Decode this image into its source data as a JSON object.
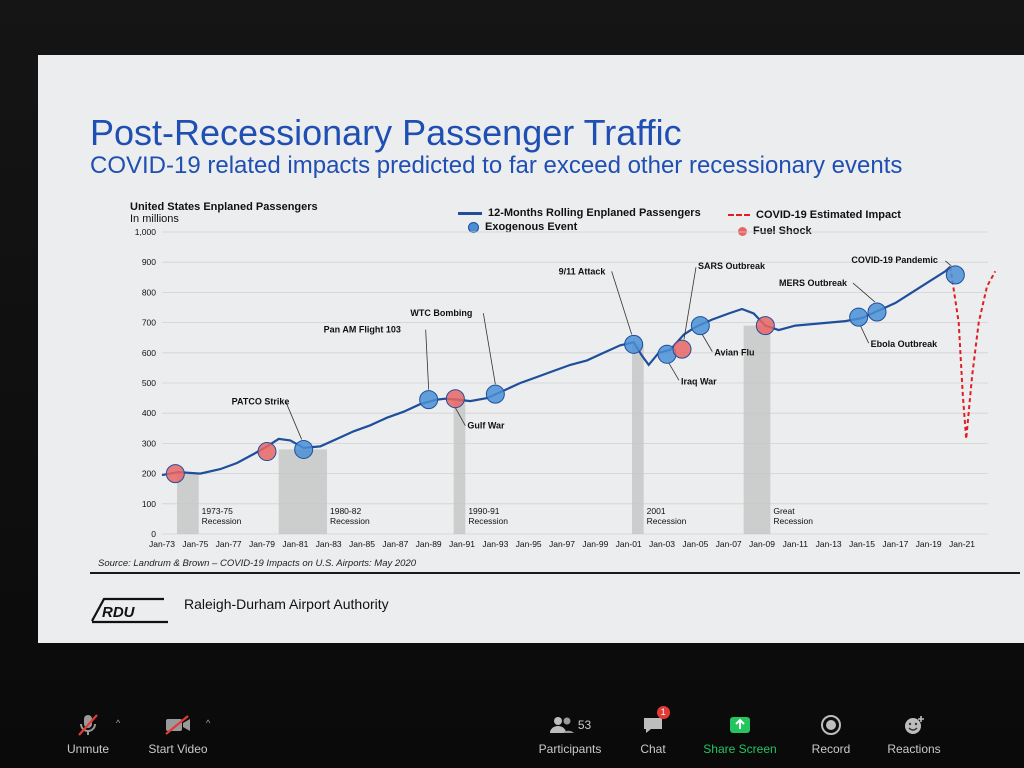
{
  "slide": {
    "title": "Post-Recessionary Passenger Traffic",
    "subtitle": "COVID-19 related impacts predicted to far exceed other recessionary events",
    "y_label": "United States Enplaned Passengers",
    "y_unit": "In millions",
    "legend": {
      "line": "12-Months Rolling Enplaned Passengers",
      "exogenous": "Exogenous Event",
      "covid": "COVID-19 Estimated Impact",
      "fuel": "Fuel Shock"
    },
    "source": "Source: Landrum & Brown – COVID-19 Impacts on U.S. Airports: May 2020",
    "org_name": "Raleigh-Durham Airport Authority",
    "logo_text": "RDU"
  },
  "chart_data": {
    "type": "line",
    "title": "Post-Recessionary Passenger Traffic",
    "ylabel": "United States Enplaned Passengers",
    "ylim": [
      0,
      1000
    ],
    "y_ticks": [
      "1,000",
      "900",
      "800",
      "700",
      "600",
      "500",
      "400",
      "300",
      "200",
      "100",
      "0"
    ],
    "x_ticks": [
      "Jan-73",
      "Jan-75",
      "Jan-77",
      "Jan-79",
      "Jan-81",
      "Jan-83",
      "Jan-85",
      "Jan-87",
      "Jan-89",
      "Jan-91",
      "Jan-93",
      "Jan-95",
      "Jan-97",
      "Jan-99",
      "Jan-01",
      "Jan-03",
      "Jan-05",
      "Jan-07",
      "Jan-09",
      "Jan-11",
      "Jan-13",
      "Jan-15",
      "Jan-17",
      "Jan-19",
      "Jan-21"
    ],
    "grid": true,
    "series": [
      {
        "name": "12-Months Rolling Enplaned Passengers",
        "color": "#1f4e9c",
        "points": [
          [
            1973.0,
            195
          ],
          [
            1974.0,
            205
          ],
          [
            1975.3,
            200
          ],
          [
            1976.5,
            215
          ],
          [
            1977.5,
            235
          ],
          [
            1978.5,
            265
          ],
          [
            1979.3,
            290
          ],
          [
            1980.0,
            315
          ],
          [
            1980.7,
            310
          ],
          [
            1981.5,
            285
          ],
          [
            1982.5,
            290
          ],
          [
            1983.5,
            315
          ],
          [
            1984.5,
            340
          ],
          [
            1985.5,
            360
          ],
          [
            1986.5,
            385
          ],
          [
            1987.5,
            405
          ],
          [
            1988.5,
            430
          ],
          [
            1989.5,
            445
          ],
          [
            1990.0,
            448
          ],
          [
            1990.7,
            445
          ],
          [
            1991.5,
            440
          ],
          [
            1992.5,
            450
          ],
          [
            1993.5,
            475
          ],
          [
            1994.5,
            500
          ],
          [
            1995.5,
            520
          ],
          [
            1996.5,
            540
          ],
          [
            1997.5,
            560
          ],
          [
            1998.5,
            575
          ],
          [
            1999.5,
            600
          ],
          [
            2000.5,
            625
          ],
          [
            2001.3,
            635
          ],
          [
            2001.8,
            590
          ],
          [
            2002.2,
            560
          ],
          [
            2002.8,
            600
          ],
          [
            2003.5,
            610
          ],
          [
            2004.3,
            660
          ],
          [
            2005.0,
            685
          ],
          [
            2006.0,
            710
          ],
          [
            2007.0,
            730
          ],
          [
            2007.8,
            745
          ],
          [
            2008.5,
            730
          ],
          [
            2009.2,
            690
          ],
          [
            2010.0,
            675
          ],
          [
            2011.0,
            690
          ],
          [
            2012.0,
            695
          ],
          [
            2013.0,
            700
          ],
          [
            2014.0,
            705
          ],
          [
            2015.0,
            715
          ],
          [
            2016.0,
            740
          ],
          [
            2017.0,
            765
          ],
          [
            2018.0,
            800
          ],
          [
            2019.0,
            835
          ],
          [
            2020.0,
            870
          ],
          [
            2020.3,
            885
          ]
        ]
      },
      {
        "name": "COVID-19 Estimated Impact",
        "color": "#e01e24",
        "points": [
          [
            2020.3,
            885
          ],
          [
            2020.8,
            700
          ],
          [
            2021.05,
            460
          ],
          [
            2021.25,
            315
          ],
          [
            2021.6,
            520
          ],
          [
            2022.0,
            700
          ],
          [
            2022.5,
            820
          ],
          [
            2023.0,
            870
          ]
        ]
      }
    ],
    "recessions": [
      {
        "label": "1973-75 Recession",
        "start": 1973.9,
        "end": 1975.2
      },
      {
        "label": "1980-82 Recession",
        "start": 1980.0,
        "end": 1982.9
      },
      {
        "label": "1990-91 Recession",
        "start": 1990.5,
        "end": 1991.2
      },
      {
        "label": "2001 Recession",
        "start": 2001.2,
        "end": 2001.9
      },
      {
        "label": "Great Recession",
        "start": 2007.9,
        "end": 2009.5
      }
    ],
    "events": [
      {
        "x": 1973.8,
        "y": 200,
        "kind": "fuel",
        "label": ""
      },
      {
        "x": 1979.3,
        "y": 273,
        "kind": "fuel",
        "label": ""
      },
      {
        "x": 1981.5,
        "y": 280,
        "kind": "exogenous",
        "label": "PATCO Strike"
      },
      {
        "x": 1989.0,
        "y": 445,
        "kind": "exogenous",
        "label": "Pan AM Flight 103"
      },
      {
        "x": 1990.6,
        "y": 448,
        "kind": "fuel",
        "label": "Gulf War"
      },
      {
        "x": 1993.0,
        "y": 463,
        "kind": "exogenous",
        "label": "WTC Bombing"
      },
      {
        "x": 2001.3,
        "y": 628,
        "kind": "exogenous",
        "label": "9/11 Attack"
      },
      {
        "x": 2003.3,
        "y": 595,
        "kind": "exogenous",
        "label": "Iraq War"
      },
      {
        "x": 2004.2,
        "y": 612,
        "kind": "fuel",
        "label": "SARS Outbreak"
      },
      {
        "x": 2005.3,
        "y": 690,
        "kind": "exogenous",
        "label": "Avian Flu"
      },
      {
        "x": 2009.2,
        "y": 690,
        "kind": "fuel",
        "label": ""
      },
      {
        "x": 2014.8,
        "y": 718,
        "kind": "exogenous",
        "label": "Ebola Outbreak"
      },
      {
        "x": 2015.9,
        "y": 735,
        "kind": "exogenous",
        "label": "MERS Outbreak"
      },
      {
        "x": 2020.6,
        "y": 858,
        "kind": "exogenous",
        "label": "COVID-19 Pandemic"
      }
    ],
    "colors": {
      "exogenous": "#4a8fd6",
      "fuel": "#e96565",
      "line": "#1f4e9c",
      "covid": "#e01e24",
      "recession_bar": "#c7c7c7"
    }
  },
  "toolbar": {
    "unmute": "Unmute",
    "start_video": "Start Video",
    "participants": "Participants",
    "participants_count": "53",
    "chat": "Chat",
    "chat_badge": "1",
    "share_screen": "Share Screen",
    "record": "Record",
    "reactions": "Reactions"
  }
}
